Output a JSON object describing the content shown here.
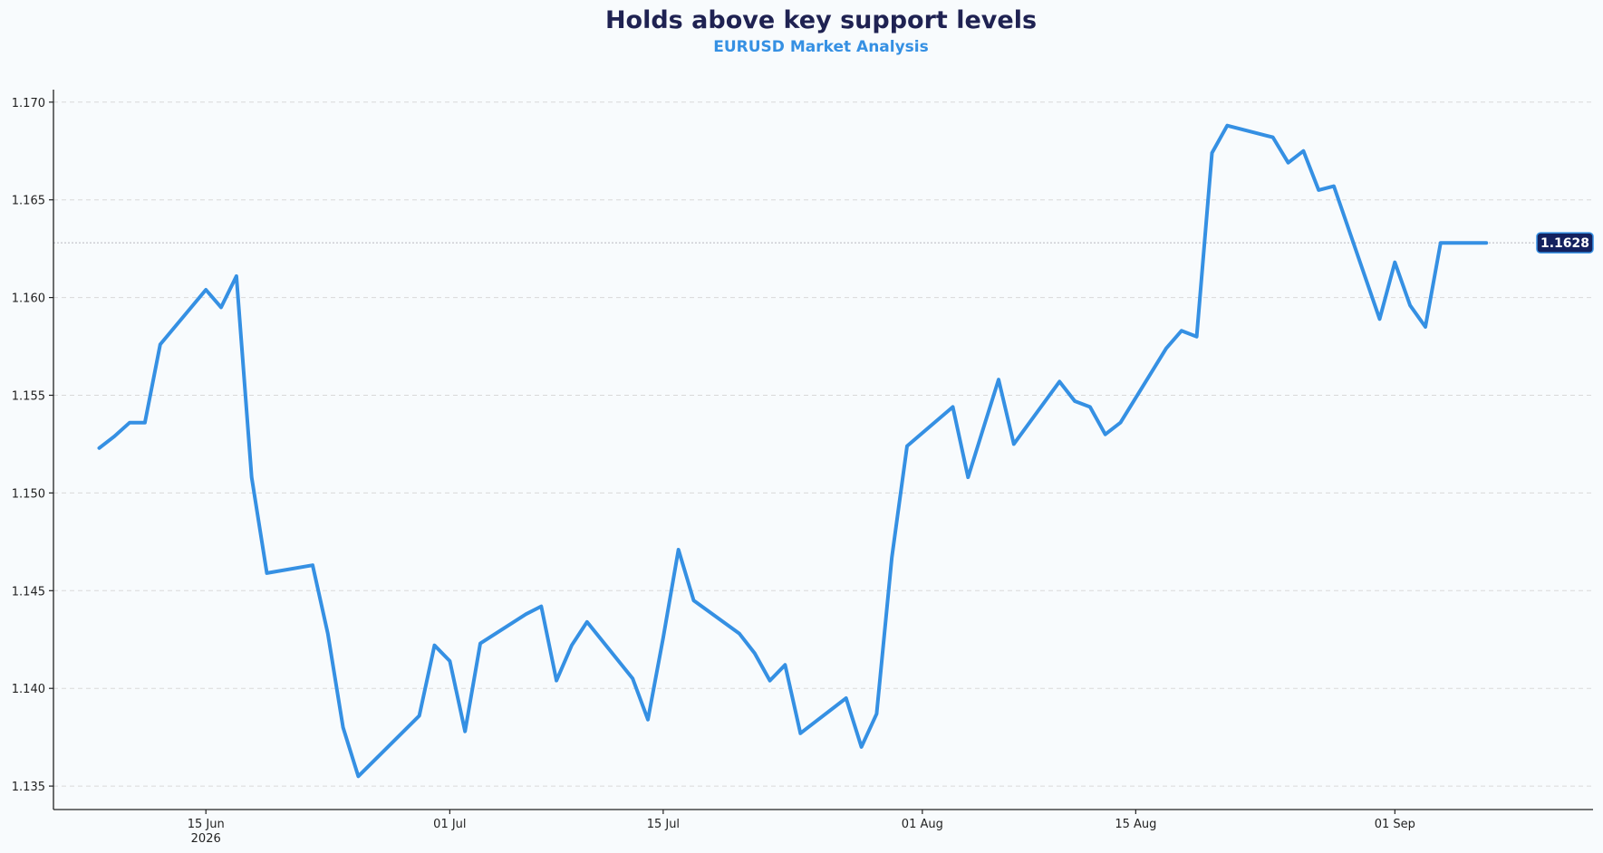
{
  "chart_data": {
    "type": "line",
    "title": "Holds above key support levels",
    "subtitle": "EURUSD Market Analysis",
    "xlabel": "",
    "ylabel": "",
    "ylim": [
      1.1338,
      1.1705
    ],
    "xlim": [
      "2026-06-05",
      "2026-09-14"
    ],
    "yticks": [
      1.135,
      1.14,
      1.145,
      1.15,
      1.155,
      1.16,
      1.165,
      1.17
    ],
    "ytick_labels": [
      "1.135",
      "1.140",
      "1.145",
      "1.150",
      "1.155",
      "1.160",
      "1.165",
      "1.170"
    ],
    "xticks": [
      {
        "date": "2026-06-15",
        "label": "15 Jun",
        "sublabel": "2026"
      },
      {
        "date": "2026-07-01",
        "label": "01 Jul",
        "sublabel": ""
      },
      {
        "date": "2026-07-15",
        "label": "15 Jul",
        "sublabel": ""
      },
      {
        "date": "2026-08-01",
        "label": "01 Aug",
        "sublabel": ""
      },
      {
        "date": "2026-08-15",
        "label": "15 Aug",
        "sublabel": ""
      },
      {
        "date": "2026-09-01",
        "label": "01 Sep",
        "sublabel": ""
      }
    ],
    "grid": "horizontal dashed",
    "last_value_label": "1.1628",
    "series": [
      {
        "color": "#3590e3",
        "points": [
          [
            "2026-06-08",
            1.1523
          ],
          [
            "2026-06-09",
            1.1529
          ],
          [
            "2026-06-10",
            1.1536
          ],
          [
            "2026-06-11",
            1.1536
          ],
          [
            "2026-06-12",
            1.1576
          ],
          [
            "2026-06-15",
            1.1604
          ],
          [
            "2026-06-16",
            1.1595
          ],
          [
            "2026-06-17",
            1.1611
          ],
          [
            "2026-06-18",
            1.1508
          ],
          [
            "2026-06-19",
            1.1459
          ],
          [
            "2026-06-22",
            1.1463
          ],
          [
            "2026-06-23",
            1.1428
          ],
          [
            "2026-06-24",
            1.138
          ],
          [
            "2026-06-25",
            1.1355
          ],
          [
            "2026-06-29",
            1.1386
          ],
          [
            "2026-06-30",
            1.1422
          ],
          [
            "2026-07-01",
            1.1414
          ],
          [
            "2026-07-02",
            1.1378
          ],
          [
            "2026-07-03",
            1.1423
          ],
          [
            "2026-07-06",
            1.1438
          ],
          [
            "2026-07-07",
            1.1442
          ],
          [
            "2026-07-08",
            1.1404
          ],
          [
            "2026-07-09",
            1.1422
          ],
          [
            "2026-07-10",
            1.1434
          ],
          [
            "2026-07-13",
            1.1405
          ],
          [
            "2026-07-14",
            1.1384
          ],
          [
            "2026-07-15",
            1.1426
          ],
          [
            "2026-07-16",
            1.1471
          ],
          [
            "2026-07-17",
            1.1445
          ],
          [
            "2026-07-20",
            1.1428
          ],
          [
            "2026-07-21",
            1.1418
          ],
          [
            "2026-07-22",
            1.1404
          ],
          [
            "2026-07-23",
            1.1412
          ],
          [
            "2026-07-24",
            1.1377
          ],
          [
            "2026-07-27",
            1.1395
          ],
          [
            "2026-07-28",
            1.137
          ],
          [
            "2026-07-29",
            1.1387
          ],
          [
            "2026-07-30",
            1.1467
          ],
          [
            "2026-07-31",
            1.1524
          ],
          [
            "2026-08-03",
            1.1544
          ],
          [
            "2026-08-04",
            1.1508
          ],
          [
            "2026-08-05",
            1.1533
          ],
          [
            "2026-08-06",
            1.1558
          ],
          [
            "2026-08-07",
            1.1525
          ],
          [
            "2026-08-10",
            1.1557
          ],
          [
            "2026-08-11",
            1.1547
          ],
          [
            "2026-08-12",
            1.1544
          ],
          [
            "2026-08-13",
            1.153
          ],
          [
            "2026-08-14",
            1.1536
          ],
          [
            "2026-08-17",
            1.1574
          ],
          [
            "2026-08-18",
            1.1583
          ],
          [
            "2026-08-19",
            1.158
          ],
          [
            "2026-08-20",
            1.1674
          ],
          [
            "2026-08-21",
            1.1688
          ],
          [
            "2026-08-24",
            1.1682
          ],
          [
            "2026-08-25",
            1.1669
          ],
          [
            "2026-08-26",
            1.1675
          ],
          [
            "2026-08-27",
            1.1655
          ],
          [
            "2026-08-28",
            1.1657
          ],
          [
            "2026-08-31",
            1.1589
          ],
          [
            "2026-09-01",
            1.1618
          ],
          [
            "2026-09-02",
            1.1596
          ],
          [
            "2026-09-03",
            1.1585
          ],
          [
            "2026-09-04",
            1.1628
          ],
          [
            "2026-09-07",
            1.1628
          ]
        ]
      }
    ]
  }
}
